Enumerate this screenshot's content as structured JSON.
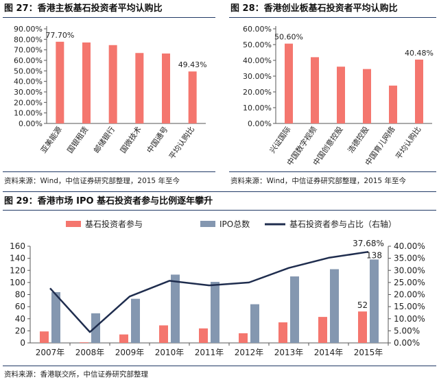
{
  "colors": {
    "bar_red": "#F4766E",
    "bar_blue": "#8497B0",
    "line_navy": "#1F2D4E",
    "rule_navy": "#1F3864"
  },
  "fig27": {
    "title": "图 27：香港主板基石投资者平均认购比",
    "source": "资料来源：Wind，中信证券研究部整理，2015 年至今"
  },
  "fig28": {
    "title": "图 28：香港创业板基石投资者平均认购比",
    "source": "资料来源：Wind，中信证券研究部整理，2015 年至今"
  },
  "fig29": {
    "title": "图 29：香港市场 IPO 基石投资者参与比例逐年攀升",
    "source": "资料来源：香港联交所，中信证券研究部整理"
  },
  "chart_data": [
    {
      "type": "bar",
      "categories": [
        "亚美能源",
        "国银租赁",
        "邮储银行",
        "国微技术",
        "中国通号",
        "平均认购比"
      ],
      "values": [
        77.7,
        77.0,
        74.5,
        67.0,
        66.5,
        49.43
      ],
      "data_labels": [
        "77.70%",
        "",
        "",
        "",
        "",
        "49.43%"
      ],
      "ylim": [
        0,
        90
      ],
      "ytick_labels": [
        "0.00%",
        "10.00%",
        "20.00%",
        "30.00%",
        "40.00%",
        "50.00%",
        "60.00%",
        "70.00%",
        "80.00%",
        "90.00%"
      ],
      "color": "#F4766E"
    },
    {
      "type": "bar",
      "categories": [
        "兴证国际",
        "中国数字视频",
        "中国创意控股",
        "浩德控股",
        "中国育儿网络",
        "平均认购比"
      ],
      "values": [
        50.6,
        42.0,
        36.0,
        34.5,
        24.0,
        40.48
      ],
      "data_labels": [
        "50.60%",
        "",
        "",
        "",
        "",
        "40.48%"
      ],
      "ylim": [
        0,
        60
      ],
      "ytick_labels": [
        "0.00%",
        "10.00%",
        "20.00%",
        "30.00%",
        "40.00%",
        "50.00%",
        "60.00%"
      ],
      "color": "#F4766E"
    },
    {
      "type": "bar",
      "categories": [
        "2007年",
        "2008年",
        "2009年",
        "2010年",
        "2011年",
        "2012年",
        "2013年",
        "2014年",
        "2015年"
      ],
      "series": [
        {
          "name": "基石投资者参与",
          "type": "bar",
          "axis": "left",
          "color": "#F4766E",
          "values": [
            19,
            1,
            14,
            29,
            24,
            16,
            34,
            43,
            52
          ]
        },
        {
          "name": "IPO总数",
          "type": "bar",
          "axis": "left",
          "color": "#8497B0",
          "values": [
            84,
            49,
            73,
            113,
            101,
            64,
            110,
            122,
            138
          ]
        },
        {
          "name": "基石投资者参与占比（右轴）",
          "type": "line",
          "axis": "right",
          "color": "#1F2D4E",
          "values": [
            22.6,
            4.5,
            19.2,
            25.7,
            23.8,
            25.0,
            31.0,
            35.2,
            37.68
          ]
        }
      ],
      "data_labels": {
        "ipo_2015": "138",
        "participation_2015": "52",
        "ratio_2015": "37.68%"
      },
      "ylim": [
        0,
        160
      ],
      "ytick_labels": [
        "0",
        "20",
        "40",
        "60",
        "80",
        "100",
        "120",
        "140",
        "160"
      ],
      "y2lim": [
        0,
        40
      ],
      "y2tick_labels": [
        "0.00%",
        "5.00%",
        "10.00%",
        "15.00%",
        "20.00%",
        "25.00%",
        "30.00%",
        "35.00%",
        "40.00%"
      ],
      "legend": "top"
    }
  ]
}
